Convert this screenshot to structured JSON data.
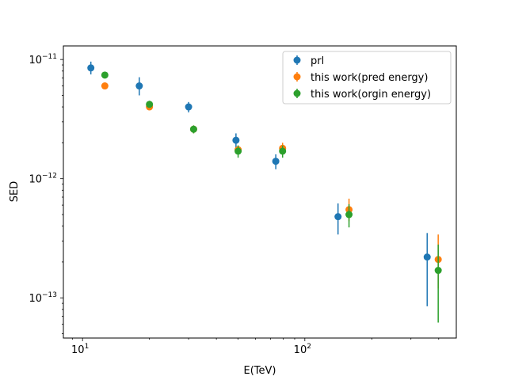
{
  "chart_data": {
    "type": "scatter",
    "xlabel": "E(TeV)",
    "ylabel": "SED",
    "xscale": "log",
    "yscale": "log",
    "xlim": [
      8.2,
      480
    ],
    "ylim": [
      4.6e-14,
      1.3e-11
    ],
    "x_ticks": [
      {
        "value": 10,
        "base": "10",
        "exp": "1"
      },
      {
        "value": 100,
        "base": "10",
        "exp": "2"
      }
    ],
    "y_ticks": [
      {
        "value": 1e-13,
        "base": "10",
        "exp": "−13"
      },
      {
        "value": 1e-12,
        "base": "10",
        "exp": "−12"
      },
      {
        "value": 1e-11,
        "base": "10",
        "exp": "−11"
      }
    ],
    "legend_position": "top-right",
    "grid": false,
    "series": [
      {
        "name": "prl",
        "color": "#1f77b4",
        "points": [
          {
            "x": 10.9,
            "y": 8.5e-12,
            "ylo": 7.5e-12,
            "yhi": 9.6e-12
          },
          {
            "x": 18.0,
            "y": 6e-12,
            "ylo": 5e-12,
            "yhi": 7.1e-12
          },
          {
            "x": 30.0,
            "y": 4e-12,
            "ylo": 3.6e-12,
            "yhi": 4.4e-12
          },
          {
            "x": 49.0,
            "y": 2.1e-12,
            "ylo": 1.8e-12,
            "yhi": 2.4e-12
          },
          {
            "x": 74.0,
            "y": 1.4e-12,
            "ylo": 1.2e-12,
            "yhi": 1.6e-12
          },
          {
            "x": 141.0,
            "y": 4.8e-13,
            "ylo": 3.4e-13,
            "yhi": 6.2e-13
          },
          {
            "x": 355.0,
            "y": 2.2e-13,
            "ylo": 8.5e-14,
            "yhi": 3.5e-13
          }
        ]
      },
      {
        "name": "this work(pred energy)",
        "color": "#ff7f0e",
        "points": [
          {
            "x": 12.6,
            "y": 6e-12,
            "ylo": 5.7e-12,
            "yhi": 6.3e-12
          },
          {
            "x": 20.0,
            "y": 4e-12,
            "ylo": 3.8e-12,
            "yhi": 4.2e-12
          },
          {
            "x": 31.6,
            "y": 2.6e-12,
            "ylo": 2.4e-12,
            "yhi": 2.8e-12
          },
          {
            "x": 50.1,
            "y": 1.75e-12,
            "ylo": 1.6e-12,
            "yhi": 1.9e-12
          },
          {
            "x": 79.4,
            "y": 1.8e-12,
            "ylo": 1.65e-12,
            "yhi": 2e-12
          },
          {
            "x": 158.0,
            "y": 5.5e-13,
            "ylo": 4.4e-13,
            "yhi": 6.8e-13
          },
          {
            "x": 398.0,
            "y": 2.1e-13,
            "ylo": 1.2e-13,
            "yhi": 3.4e-13
          }
        ]
      },
      {
        "name": "this work(orgin energy)",
        "color": "#2ca02c",
        "points": [
          {
            "x": 12.6,
            "y": 7.4e-12,
            "ylo": 7e-12,
            "yhi": 7.8e-12
          },
          {
            "x": 20.0,
            "y": 4.2e-12,
            "ylo": 4e-12,
            "yhi": 4.5e-12
          },
          {
            "x": 31.6,
            "y": 2.6e-12,
            "ylo": 2.4e-12,
            "yhi": 2.8e-12
          },
          {
            "x": 50.1,
            "y": 1.7e-12,
            "ylo": 1.5e-12,
            "yhi": 1.9e-12
          },
          {
            "x": 79.4,
            "y": 1.7e-12,
            "ylo": 1.5e-12,
            "yhi": 1.9e-12
          },
          {
            "x": 158.0,
            "y": 5e-13,
            "ylo": 3.9e-13,
            "yhi": 6.1e-13
          },
          {
            "x": 398.0,
            "y": 1.7e-13,
            "ylo": 6.2e-14,
            "yhi": 2.8e-13
          }
        ]
      }
    ]
  }
}
